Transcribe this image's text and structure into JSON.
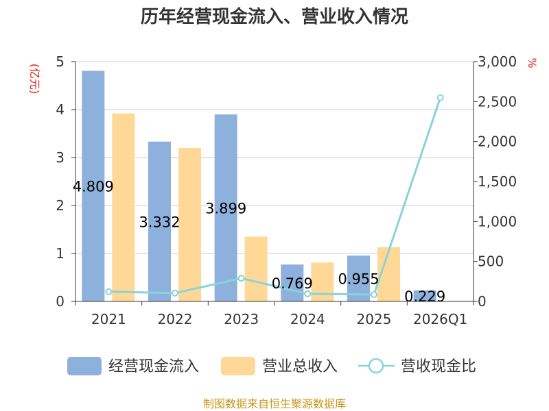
{
  "chart_data": {
    "type": "bar",
    "title": "历年经营现金流入、营业收入情况",
    "categories": [
      "2021",
      "2022",
      "2023",
      "2024",
      "2025",
      "2026Q1"
    ],
    "left_unit": "(亿元)",
    "right_unit": "%",
    "left_axis": {
      "min": 0,
      "max": 5,
      "ticks": [
        "0",
        "1",
        "2",
        "3",
        "4",
        "5"
      ]
    },
    "right_axis": {
      "min": 0,
      "max": 3000,
      "ticks": [
        "0",
        "500",
        "1,000",
        "1,500",
        "2,000",
        "2,500",
        "3,000"
      ]
    },
    "series": [
      {
        "name": "经营现金流入",
        "kind": "bar",
        "axis": "left",
        "color": "#8eb0dc",
        "values": [
          4.809,
          3.332,
          3.899,
          0.769,
          0.955,
          0.229
        ],
        "labels": [
          "4.809",
          "3.332",
          "3.899",
          "0.769",
          "0.955",
          "0.229"
        ]
      },
      {
        "name": "营业总收入",
        "kind": "bar",
        "axis": "left",
        "color": "#ffd898",
        "values": [
          3.92,
          3.2,
          1.35,
          0.81,
          1.13,
          0.0
        ]
      },
      {
        "name": "营收现金比",
        "kind": "line",
        "axis": "right",
        "color": "#88d4d8",
        "values": [
          122,
          104,
          289,
          95,
          85,
          2550
        ]
      }
    ],
    "grid": true,
    "legend_position": "bottom",
    "source": "制图数据来自恒生聚源数据库"
  }
}
